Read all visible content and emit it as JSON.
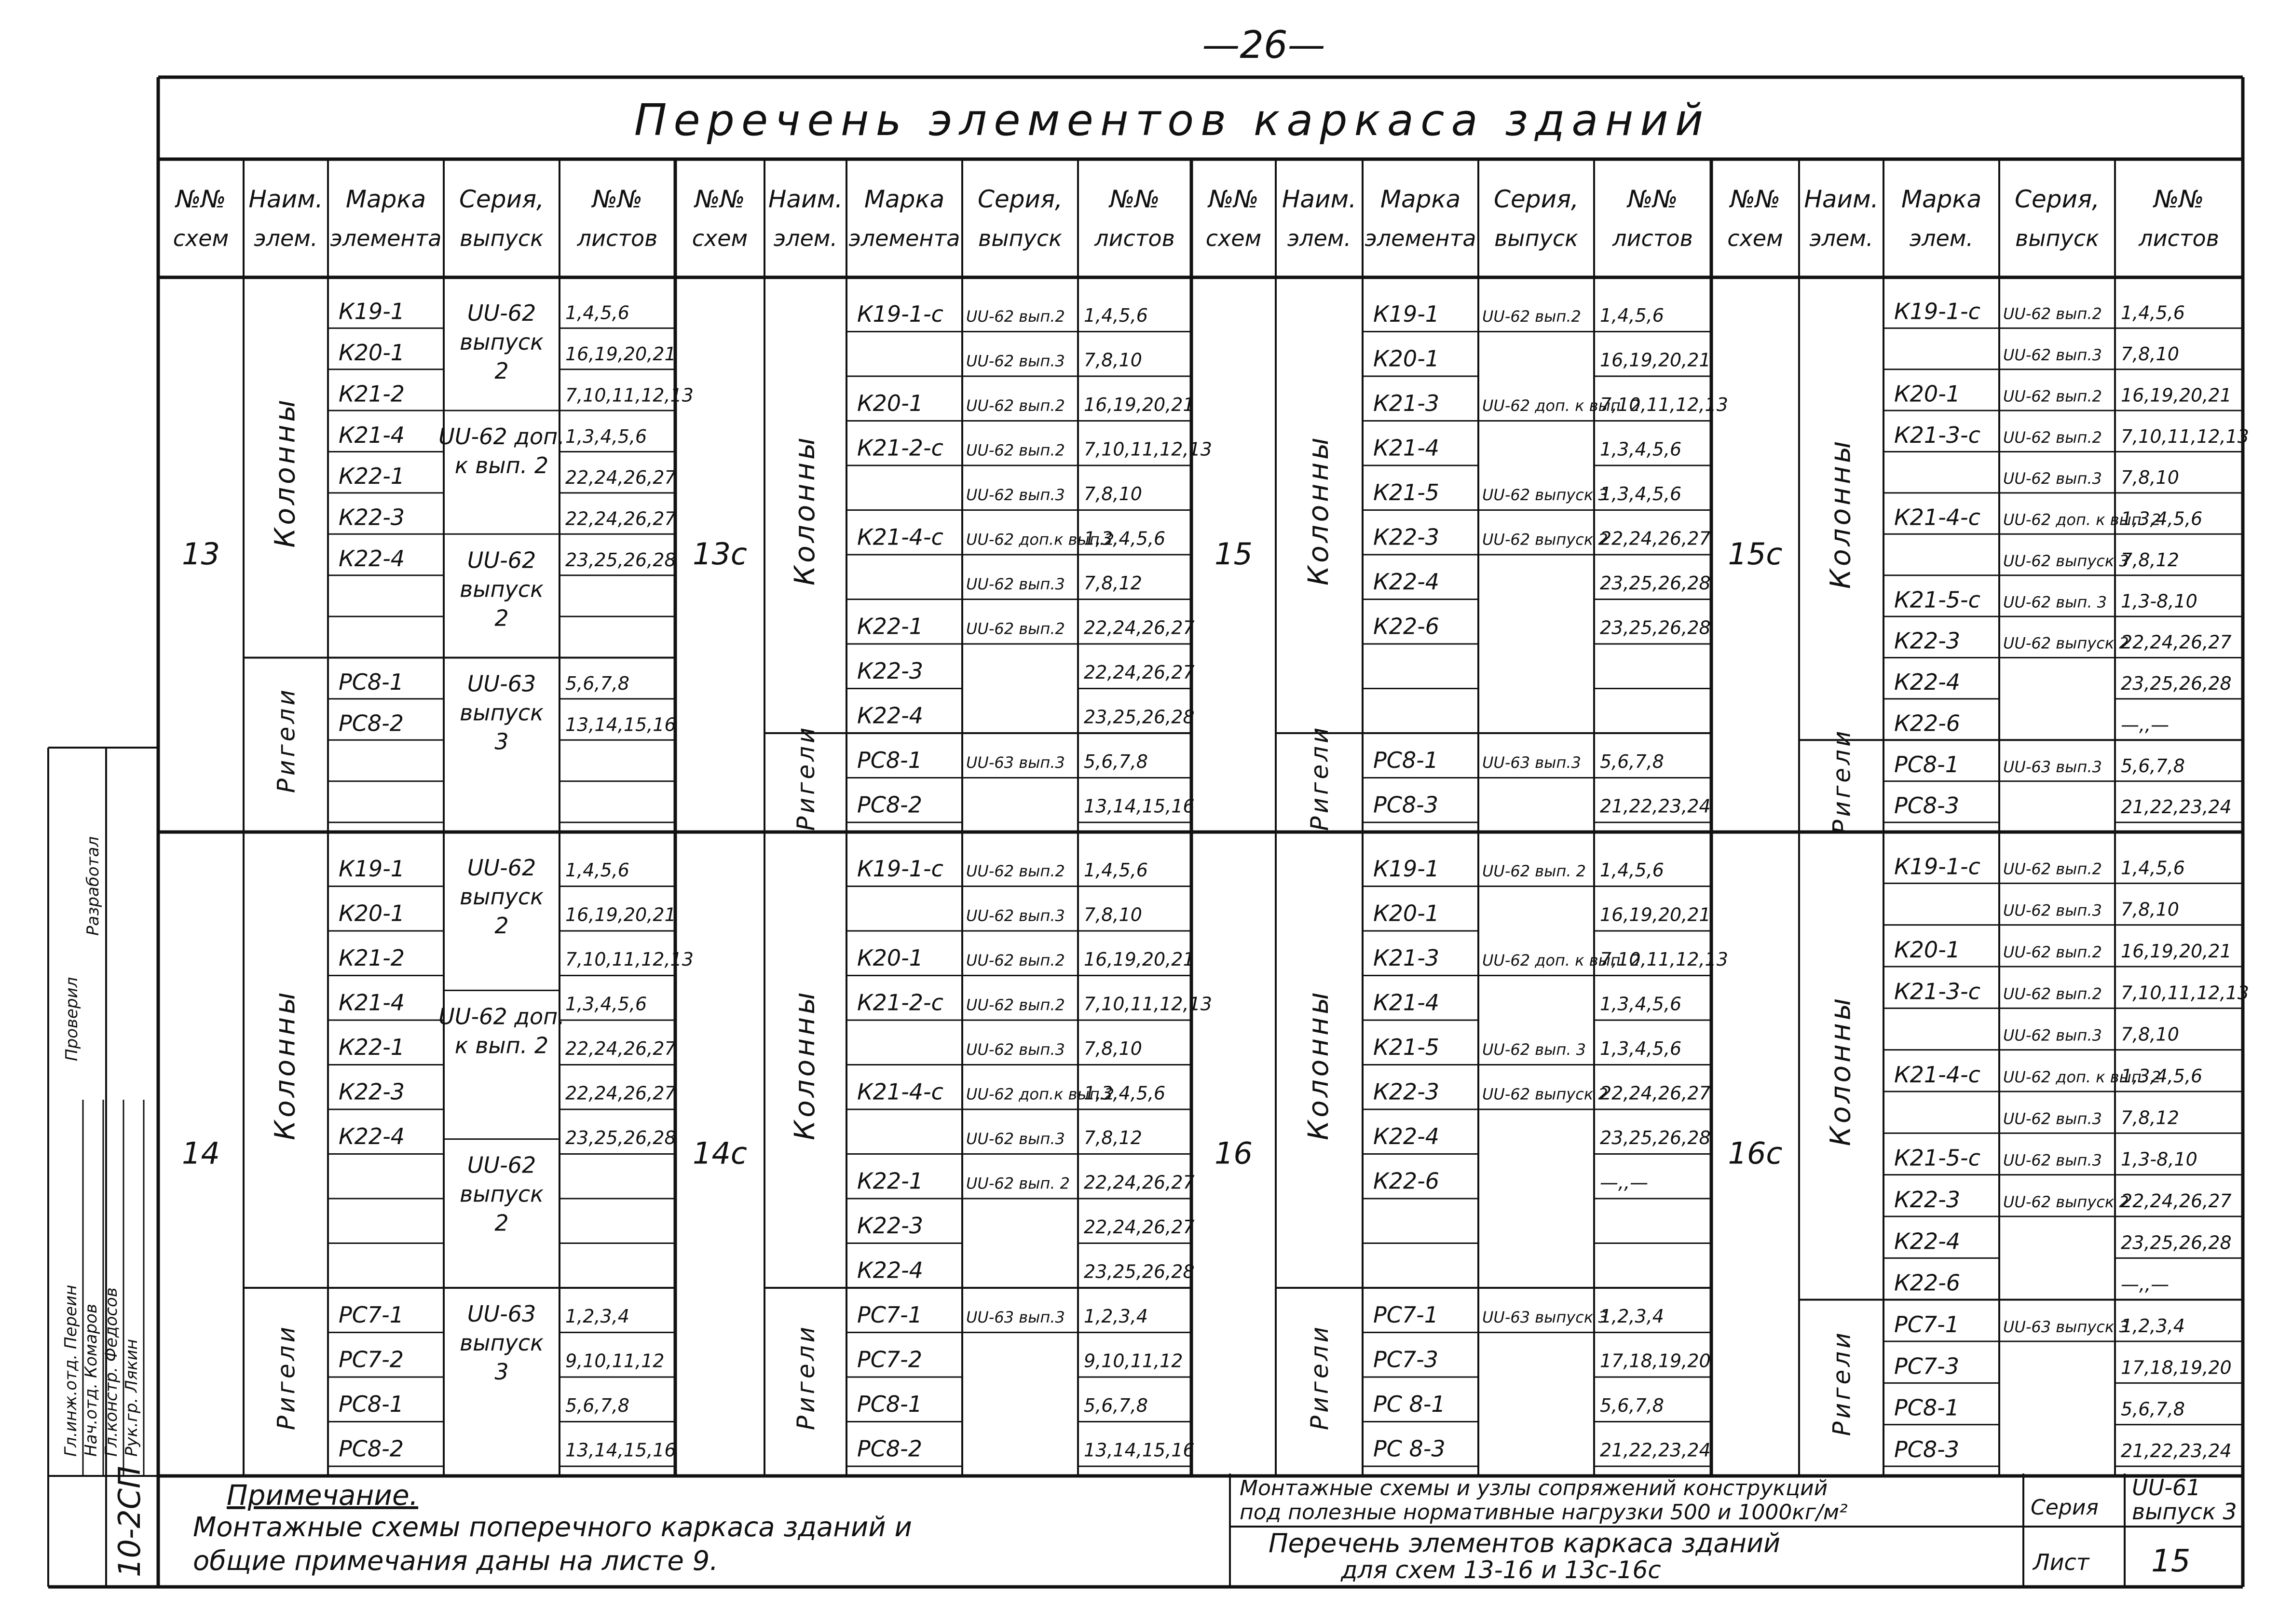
{
  "page_number": "—26—",
  "title": "Перечень элементов каркаса зданий",
  "headers": {
    "num": [
      "№№",
      "схем"
    ],
    "name": [
      "Наим.",
      "элем."
    ],
    "mark": [
      "Марка",
      "элемента"
    ],
    "mark_short": [
      "Марка",
      "элем."
    ],
    "series": [
      "Серия,",
      "выпуск"
    ],
    "sheets": [
      "№№",
      "листов"
    ]
  },
  "blocks": [
    {
      "scheme": "13",
      "groups": [
        {
          "name": "Колонны",
          "rows": [
            [
              "К19-1",
              "1,4,5,6"
            ],
            [
              "К20-1",
              "16,19,20,21"
            ],
            [
              "К21-2",
              "7,10,11,12,13"
            ],
            [
              "К21-4",
              "1,3,4,5,6"
            ],
            [
              "К22-1",
              "22,24,26,27"
            ],
            [
              "К22-3",
              "22,24,26,27"
            ],
            [
              "К22-4",
              "23,25,26,28"
            ],
            [
              "",
              ""
            ],
            [
              "",
              ""
            ]
          ],
          "series": [
            [
              "UU-62",
              "выпуск",
              "2"
            ],
            [
              "UU-62 доп.",
              "к вып. 2"
            ],
            [
              "UU-62",
              "выпуск",
              "2"
            ]
          ]
        },
        {
          "name": "Ригели",
          "rows": [
            [
              "РС8-1",
              "5,6,7,8"
            ],
            [
              "РС8-2",
              "13,14,15,16"
            ],
            [
              "",
              ""
            ],
            [
              "",
              ""
            ]
          ],
          "series": [
            [
              "UU-63",
              "выпуск",
              "3"
            ]
          ]
        }
      ]
    },
    {
      "scheme": "13с",
      "groups": [
        {
          "name": "Колонны",
          "rows": [
            [
              "К19-1-с",
              "UU-62 вып.2",
              "1,4,5,6"
            ],
            [
              "",
              "UU-62 вып.3",
              "7,8,10"
            ],
            [
              "К20-1",
              "UU-62 вып.2",
              "16,19,20,21"
            ],
            [
              "К21-2-с",
              "UU-62 вып.2",
              "7,10,11,12,13"
            ],
            [
              "",
              "UU-62 вып.3",
              "7,8,10"
            ],
            [
              "К21-4-с",
              "UU-62 доп.к вып.2",
              "1,3,4,5,6"
            ],
            [
              "",
              "UU-62 вып.3",
              "7,8,12"
            ],
            [
              "К22-1",
              "UU-62 вып.2",
              "22,24,26,27"
            ],
            [
              "К22-3",
              "",
              "22,24,26,27"
            ],
            [
              "К22-4",
              "",
              "23,25,26,28"
            ]
          ]
        },
        {
          "name": "Ригели",
          "rows": [
            [
              "РС8-1",
              "UU-63 вып.3",
              "5,6,7,8"
            ],
            [
              "РС8-2",
              "",
              "13,14,15,16"
            ]
          ]
        }
      ]
    },
    {
      "scheme": "15",
      "groups": [
        {
          "name": "Колонны",
          "rows": [
            [
              "К19-1",
              "UU-62 вып.2",
              "1,4,5,6"
            ],
            [
              "К20-1",
              "",
              "16,19,20,21"
            ],
            [
              "К21-3",
              "UU-62 доп. к вып. 2",
              "7,10,11,12,13"
            ],
            [
              "К21-4",
              "",
              "1,3,4,5,6"
            ],
            [
              "К21-5",
              "UU-62 выпуск 3",
              "1,3,4,5,6"
            ],
            [
              "К22-3",
              "UU-62 выпуск 2",
              "22,24,26,27"
            ],
            [
              "К22-4",
              "",
              "23,25,26,28"
            ],
            [
              "К22-6",
              "",
              "23,25,26,28"
            ],
            [
              "",
              "",
              ""
            ],
            [
              "",
              "",
              ""
            ]
          ]
        },
        {
          "name": "Ригели",
          "rows": [
            [
              "РС8-1",
              "UU-63 вып.3",
              "5,6,7,8"
            ],
            [
              "РС8-3",
              "",
              "21,22,23,24"
            ]
          ]
        }
      ]
    },
    {
      "scheme": "15с",
      "groups": [
        {
          "name": "Колонны",
          "rows": [
            [
              "К19-1-с",
              "UU-62 вып.2",
              "1,4,5,6"
            ],
            [
              "",
              "UU-62 вып.3",
              "7,8,10"
            ],
            [
              "К20-1",
              "UU-62 вып.2",
              "16,19,20,21"
            ],
            [
              "К21-3-с",
              "UU-62 вып.2",
              "7,10,11,12,13"
            ],
            [
              "",
              "UU-62 вып.3",
              "7,8,10"
            ],
            [
              "К21-4-с",
              "UU-62 доп. к вып. 2",
              "1,3,4,5,6"
            ],
            [
              "",
              "UU-62 выпуск 3",
              "7,8,12"
            ],
            [
              "К21-5-с",
              "UU-62 вып. 3",
              "1,3-8,10"
            ],
            [
              "К22-3",
              "UU-62 выпуск 2",
              "22,24,26,27"
            ],
            [
              "К22-4",
              "",
              "23,25,26,28"
            ],
            [
              "К22-6",
              "",
              "—,,—"
            ]
          ]
        },
        {
          "name": "Ригели",
          "rows": [
            [
              "РС8-1",
              "UU-63 вып.3",
              "5,6,7,8"
            ],
            [
              "РС8-3",
              "",
              "21,22,23,24"
            ]
          ]
        }
      ]
    },
    {
      "scheme": "14",
      "groups": [
        {
          "name": "Колонны",
          "rows": [
            [
              "К19-1",
              "1,4,5,6"
            ],
            [
              "К20-1",
              "16,19,20,21"
            ],
            [
              "К21-2",
              "7,10,11,12,13"
            ],
            [
              "К21-4",
              "1,3,4,5,6"
            ],
            [
              "К22-1",
              "22,24,26,27"
            ],
            [
              "К22-3",
              "22,24,26,27"
            ],
            [
              "К22-4",
              "23,25,26,28"
            ],
            [
              "",
              ""
            ],
            [
              "",
              ""
            ],
            [
              "",
              ""
            ]
          ],
          "series": [
            [
              "UU-62",
              "выпуск",
              "2"
            ],
            [
              "UU-62 доп.",
              "к вып. 2"
            ],
            [
              "UU-62",
              "выпуск",
              "2"
            ]
          ]
        },
        {
          "name": "Ригели",
          "rows": [
            [
              "РС7-1",
              "1,2,3,4"
            ],
            [
              "РС7-2",
              "9,10,11,12"
            ],
            [
              "РС8-1",
              "5,6,7,8"
            ],
            [
              "РС8-2",
              "13,14,15,16"
            ]
          ],
          "series": [
            [
              "UU-63",
              "выпуск",
              "3"
            ]
          ]
        }
      ]
    },
    {
      "scheme": "14с",
      "groups": [
        {
          "name": "Колонны",
          "rows": [
            [
              "К19-1-с",
              "UU-62 вып.2",
              "1,4,5,6"
            ],
            [
              "",
              "UU-62 вып.3",
              "7,8,10"
            ],
            [
              "К20-1",
              "UU-62 вып.2",
              "16,19,20,21"
            ],
            [
              "К21-2-с",
              "UU-62 вып.2",
              "7,10,11,12,13"
            ],
            [
              "",
              "UU-62 вып.3",
              "7,8,10"
            ],
            [
              "К21-4-с",
              "UU-62 доп.к вып.2",
              "1,3,4,5,6"
            ],
            [
              "",
              "UU-62 вып.3",
              "7,8,12"
            ],
            [
              "К22-1",
              "UU-62 вып. 2",
              "22,24,26,27"
            ],
            [
              "К22-3",
              "",
              "22,24,26,27"
            ],
            [
              "К22-4",
              "",
              "23,25,26,28"
            ]
          ]
        },
        {
          "name": "Ригели",
          "rows": [
            [
              "РС7-1",
              "UU-63 вып.3",
              "1,2,3,4"
            ],
            [
              "РС7-2",
              "",
              "9,10,11,12"
            ],
            [
              "РС8-1",
              "",
              "5,6,7,8"
            ],
            [
              "РС8-2",
              "",
              "13,14,15,16"
            ]
          ]
        }
      ]
    },
    {
      "scheme": "16",
      "groups": [
        {
          "name": "Колонны",
          "rows": [
            [
              "К19-1",
              "UU-62 вып. 2",
              "1,4,5,6"
            ],
            [
              "К20-1",
              "",
              "16,19,20,21"
            ],
            [
              "К21-3",
              "UU-62 доп. к вып. 2",
              "7,10,11,12,13"
            ],
            [
              "К21-4",
              "",
              "1,3,4,5,6"
            ],
            [
              "К21-5",
              "UU-62 вып. 3",
              "1,3,4,5,6"
            ],
            [
              "К22-3",
              "UU-62 выпуск 2",
              "22,24,26,27"
            ],
            [
              "К22-4",
              "",
              "23,25,26,28"
            ],
            [
              "К22-6",
              "",
              "—,,—"
            ],
            [
              "",
              "",
              ""
            ],
            [
              "",
              "",
              ""
            ]
          ]
        },
        {
          "name": "Ригели",
          "rows": [
            [
              "РС7-1",
              "UU-63 выпуск 3",
              "1,2,3,4"
            ],
            [
              "РС7-3",
              "",
              "17,18,19,20"
            ],
            [
              "РС 8-1",
              "",
              "5,6,7,8"
            ],
            [
              "РС 8-3",
              "",
              "21,22,23,24"
            ]
          ]
        }
      ]
    },
    {
      "scheme": "16с",
      "groups": [
        {
          "name": "Колонны",
          "rows": [
            [
              "К19-1-с",
              "UU-62 вып.2",
              "1,4,5,6"
            ],
            [
              "",
              "UU-62 вып.3",
              "7,8,10"
            ],
            [
              "К20-1",
              "UU-62 вып.2",
              "16,19,20,21"
            ],
            [
              "К21-3-с",
              "UU-62 вып.2",
              "7,10,11,12,13"
            ],
            [
              "",
              "UU-62 вып.3",
              "7,8,10"
            ],
            [
              "К21-4-с",
              "UU-62 доп. к вып. 2",
              "1,3,4,5,6"
            ],
            [
              "",
              "UU-62 вып.3",
              "7,8,12"
            ],
            [
              "К21-5-с",
              "UU-62 вып.3",
              "1,3-8,10"
            ],
            [
              "К22-3",
              "UU-62 выпуск 2",
              "22,24,26,27"
            ],
            [
              "К22-4",
              "",
              "23,25,26,28"
            ],
            [
              "К22-6",
              "",
              "—,,—"
            ]
          ]
        },
        {
          "name": "Ригели",
          "rows": [
            [
              "РС7-1",
              "UU-63 выпуск 3",
              "1,2,3,4"
            ],
            [
              "РС7-3",
              "",
              "17,18,19,20"
            ],
            [
              "РС8-1",
              "",
              "5,6,7,8"
            ],
            [
              "РС8-3",
              "",
              "21,22,23,24"
            ]
          ]
        }
      ]
    }
  ],
  "note": {
    "title": "Примечание.",
    "lines": [
      "Монтажные схемы поперечного каркаса зданий и",
      "общие примечания даны на листе 9."
    ]
  },
  "stamp": {
    "description_lines": [
      "Монтажные схемы и узлы сопряжений конструкций",
      "под полезные нормативные нагрузки 500 и 1000кг/м²"
    ],
    "title_lines": [
      "Перечень элементов каркаса зданий",
      "для схем 13-16 и 13с-16с"
    ],
    "series_label": "Серия",
    "series_value_lines": [
      "UU-61",
      "выпуск 3"
    ],
    "sheet_label": "Лист",
    "sheet_value": "15",
    "doc_code": "10-2СП"
  },
  "approvals": [
    {
      "role": "Гл.инж.отд.",
      "name": "Переин"
    },
    {
      "role": "Нач.отд.",
      "name": "Комаров"
    },
    {
      "role": "Гл.констр.",
      "name": "Федосов"
    },
    {
      "role": "Рук.гр.",
      "name": "Лякин"
    }
  ],
  "approval_side": [
    "Проверил",
    "Разработал"
  ]
}
